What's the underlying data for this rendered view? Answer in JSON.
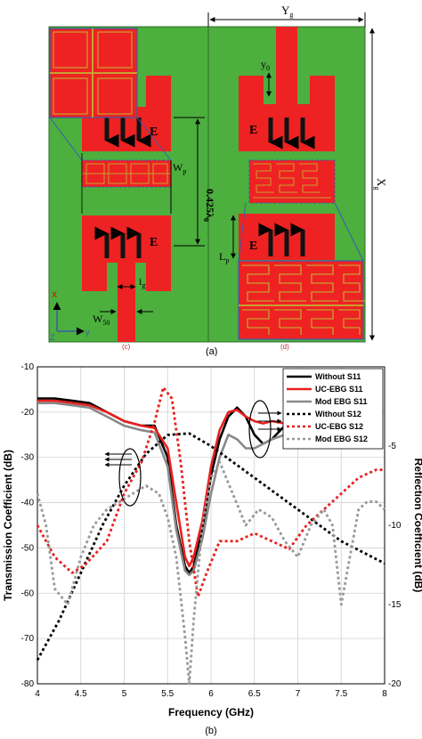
{
  "figure_a": {
    "caption": "(a)",
    "labels": {
      "yg": "Y",
      "yg_sub": "g",
      "xg": "X",
      "xg_sub": "g",
      "y0": "y",
      "y0_sub": "0",
      "spacing": "0.425λ",
      "spacing_sub": "0",
      "wp": "W",
      "wp_sub": "p",
      "lp": "L",
      "lp_sub": "p",
      "ig": "i",
      "ig_sub": "g",
      "w50": "W",
      "w50_sub": "50",
      "e_field": "E",
      "axis_x": "X",
      "axis_y": "y",
      "axis_z": "Z",
      "bottom_mark_left": "(c)",
      "bottom_mark_right": "(d)"
    },
    "colors": {
      "substrate": "#4caf3e",
      "patch": "#ee2222",
      "ebg_slot": "#c8a030",
      "arrow": "#111111",
      "zoom_box": "#3a5bb0"
    }
  },
  "figure_b": {
    "caption": "(b)",
    "chart_data": {
      "type": "line",
      "xlabel": "Frequency (GHz)",
      "ylabel_left": "Transmission Coefficient (dB)",
      "ylabel_right": "Reflection Coefficient (dB)",
      "xlim": [
        4,
        8
      ],
      "ylim_left": [
        -80,
        -10
      ],
      "ylim_right": [
        -20,
        0
      ],
      "x_ticks": [
        "4",
        "4.5",
        "5",
        "5.5",
        "6",
        "6.5",
        "7",
        "7.5",
        "8"
      ],
      "y_ticks_left": [
        "-80",
        "-70",
        "-60",
        "-50",
        "-40",
        "-30",
        "-20",
        "-10"
      ],
      "y_ticks_right": [
        "-20",
        "-15",
        "-10",
        "-5"
      ],
      "grid": true,
      "legend_position": "top-right",
      "series": [
        {
          "name": "Without   S11",
          "axis": "left",
          "color": "#000000",
          "dash": "solid",
          "x": [
            4.0,
            4.2,
            4.4,
            4.6,
            4.8,
            5.0,
            5.2,
            5.35,
            5.5,
            5.6,
            5.7,
            5.75,
            5.8,
            5.9,
            6.0,
            6.1,
            6.2,
            6.3,
            6.4,
            6.5,
            6.6,
            6.7,
            6.85
          ],
          "y": [
            -17,
            -17,
            -17.5,
            -18,
            -20,
            -22,
            -23,
            -23,
            -30,
            -45,
            -54,
            -55.5,
            -54,
            -46,
            -34,
            -26,
            -21,
            -19,
            -21,
            -25,
            -27,
            -26,
            -23
          ]
        },
        {
          "name": "UC-EBG   S11",
          "axis": "left",
          "color": "#e8201e",
          "dash": "solid",
          "x": [
            4.0,
            4.2,
            4.4,
            4.6,
            4.8,
            5.0,
            5.2,
            5.35,
            5.5,
            5.6,
            5.7,
            5.75,
            5.8,
            5.9,
            6.0,
            6.1,
            6.2,
            6.3,
            6.4,
            6.5,
            6.6,
            6.7,
            6.85
          ],
          "y": [
            -17.5,
            -17.5,
            -18,
            -18.5,
            -20,
            -22,
            -23,
            -23.5,
            -28,
            -40,
            -52,
            -54,
            -52,
            -44,
            -32,
            -24,
            -20,
            -19.5,
            -21,
            -22,
            -22.5,
            -22,
            -22.5
          ]
        },
        {
          "name": "Mod EBG S11",
          "axis": "left",
          "color": "#888888",
          "dash": "solid",
          "x": [
            4.0,
            4.2,
            4.4,
            4.6,
            4.8,
            5.0,
            5.2,
            5.35,
            5.5,
            5.6,
            5.7,
            5.75,
            5.8,
            5.9,
            6.0,
            6.1,
            6.2,
            6.3,
            6.4,
            6.5,
            6.6,
            6.7,
            6.85
          ],
          "y": [
            -18,
            -18,
            -18.5,
            -19,
            -21,
            -23,
            -24,
            -24.5,
            -32,
            -46,
            -55,
            -56,
            -55,
            -48,
            -38,
            -30,
            -25,
            -26,
            -28,
            -28,
            -27,
            -26,
            -25
          ]
        },
        {
          "name": "Without   S12",
          "axis": "right",
          "color": "#000000",
          "dash": "dotted",
          "x": [
            4.0,
            4.25,
            4.5,
            4.75,
            5.0,
            5.25,
            5.5,
            5.75,
            6.0,
            6.25,
            6.5,
            6.75,
            7.0,
            7.25,
            7.5,
            7.75,
            8.0
          ],
          "y": [
            -18.5,
            -16,
            -13,
            -10,
            -7.5,
            -5.5,
            -4.3,
            -4.2,
            -5,
            -6,
            -7,
            -8,
            -9,
            -10,
            -11,
            -11.7,
            -12.4
          ]
        },
        {
          "name": "UC-EBG   S12",
          "axis": "right",
          "color": "#e8201e",
          "dash": "dotted",
          "x": [
            4.0,
            4.2,
            4.4,
            4.55,
            4.8,
            5.0,
            5.2,
            5.35,
            5.45,
            5.55,
            5.65,
            5.75,
            5.85,
            5.95,
            6.1,
            6.3,
            6.5,
            6.7,
            6.9,
            7.1,
            7.3,
            7.5,
            7.7,
            7.9,
            8.0
          ],
          "y": [
            -10,
            -12,
            -13,
            -12.5,
            -11,
            -8,
            -6,
            -3.5,
            -1.3,
            -2,
            -6,
            -11,
            -14.5,
            -13,
            -11,
            -11,
            -10.5,
            -11,
            -11.5,
            -10,
            -9,
            -8,
            -7,
            -6.5,
            -6.5
          ]
        },
        {
          "name": "Mod EBG S12",
          "axis": "right",
          "color": "#999999",
          "dash": "dotted",
          "x": [
            4.0,
            4.1,
            4.2,
            4.35,
            4.5,
            4.65,
            4.8,
            4.95,
            5.1,
            5.25,
            5.4,
            5.5,
            5.6,
            5.7,
            5.75,
            5.8,
            5.9,
            6.0,
            6.1,
            6.25,
            6.4,
            6.55,
            6.7,
            6.85,
            7.0,
            7.15,
            7.3,
            7.4,
            7.5,
            7.6,
            7.7,
            7.8,
            7.9,
            8.0
          ],
          "y": [
            -8,
            -10,
            -14,
            -15,
            -12,
            -10,
            -9,
            -8.5,
            -8,
            -7.5,
            -8,
            -9.5,
            -12,
            -17,
            -20,
            -16,
            -10,
            -7,
            -6,
            -8,
            -10,
            -9,
            -9.5,
            -11,
            -12,
            -10,
            -9,
            -10,
            -15,
            -12,
            -9,
            -8.5,
            -8.5,
            -9
          ]
        }
      ]
    }
  }
}
